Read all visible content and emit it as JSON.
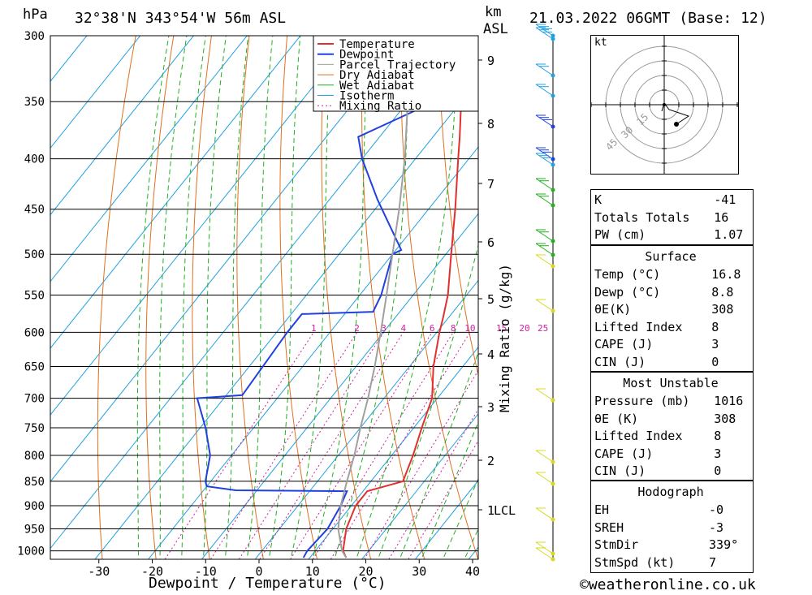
{
  "header": {
    "location": "32°38'N  343°54'W  56m  ASL",
    "datetime": "21.03.2022  06GMT  (Base: 12)",
    "p_unit": "hPa",
    "km_unit": "km",
    "asl": "ASL"
  },
  "chart_data": {
    "type": "line",
    "title": "32°38'N  343°54'W  56m  ASL",
    "xlabel": "Dewpoint / Temperature (°C)",
    "ylabel": "hPa",
    "mixing_ratio_label": "Mixing Ratio (g/kg)",
    "xlim": [
      -40,
      40
    ],
    "x_ticks": [
      -30,
      -20,
      -10,
      0,
      10,
      20,
      30,
      40
    ],
    "y_ticks": [
      300,
      350,
      400,
      450,
      500,
      550,
      600,
      650,
      700,
      750,
      800,
      850,
      900,
      950,
      1000
    ],
    "km_ticks": [
      "9",
      "8",
      "7",
      "6",
      "5",
      "4",
      "3",
      "2",
      "1"
    ],
    "lcl_label": "LCL",
    "mixing_ratio_values": [
      "1",
      "2",
      "3",
      "4",
      "6",
      "8",
      "10",
      "15",
      "20",
      "25"
    ],
    "legend": [
      "Temperature",
      "Dewpoint",
      "Parcel Trajectory",
      "Dry Adiabat",
      "Wet Adiabat",
      "Isotherm",
      "Mixing Ratio"
    ],
    "colors": {
      "temperature": "#e03030",
      "dewpoint": "#2040e0",
      "parcel": "#a0a0a0",
      "dry_adiabat": "#e07020",
      "wet_adiabat": "#20b020",
      "isotherm": "#20a0e0",
      "mixing_ratio": "#d020a0"
    },
    "series": [
      {
        "name": "Temperature",
        "points": [
          [
            1016,
            16.8
          ],
          [
            1000,
            15.2
          ],
          [
            950,
            12.5
          ],
          [
            900,
            10.8
          ],
          [
            870,
            10.8
          ],
          [
            850,
            16.0
          ],
          [
            800,
            14.0
          ],
          [
            750,
            11.5
          ],
          [
            700,
            9.0
          ],
          [
            650,
            4.5
          ],
          [
            600,
            0.5
          ],
          [
            580,
            -1.0
          ],
          [
            550,
            -3.5
          ],
          [
            500,
            -9.0
          ],
          [
            450,
            -15.0
          ],
          [
            400,
            -22.0
          ],
          [
            380,
            -25.0
          ],
          [
            350,
            -30.0
          ],
          [
            300,
            -39.0
          ]
        ]
      },
      {
        "name": "Dewpoint",
        "points": [
          [
            1016,
            8.8
          ],
          [
            1000,
            8.5
          ],
          [
            950,
            9.0
          ],
          [
            900,
            8.0
          ],
          [
            870,
            7.0
          ],
          [
            868,
            -14.0
          ],
          [
            860,
            -20.0
          ],
          [
            850,
            -21.0
          ],
          [
            800,
            -24.0
          ],
          [
            750,
            -29.0
          ],
          [
            700,
            -35.0
          ],
          [
            695,
            -27.0
          ],
          [
            600,
            -28.0
          ],
          [
            575,
            -28.0
          ],
          [
            572,
            -15.0
          ],
          [
            550,
            -16.0
          ],
          [
            500,
            -20.0
          ],
          [
            495,
            -19.0
          ],
          [
            440,
            -31.0
          ],
          [
            400,
            -40.0
          ],
          [
            380,
            -44.0
          ],
          [
            350,
            -35.0
          ],
          [
            330,
            -45.0
          ],
          [
            320,
            -47.0
          ],
          [
            300,
            -52.0
          ]
        ]
      },
      {
        "name": "Parcel Trajectory",
        "points": [
          [
            1016,
            16.8
          ],
          [
            1000,
            15.0
          ],
          [
            950,
            11.0
          ],
          [
            900,
            8.0
          ],
          [
            850,
            5.5
          ],
          [
            800,
            3.0
          ],
          [
            750,
            0.0
          ],
          [
            700,
            -3.0
          ],
          [
            650,
            -6.5
          ],
          [
            600,
            -10.5
          ],
          [
            550,
            -15.0
          ],
          [
            500,
            -20.0
          ],
          [
            450,
            -25.5
          ],
          [
            400,
            -32.0
          ],
          [
            350,
            -40.0
          ],
          [
            300,
            -49.0
          ]
        ]
      }
    ]
  },
  "hodograph": {
    "unit": "kt",
    "rings": [
      "15",
      "30",
      "45"
    ]
  },
  "indices": [
    {
      "label": "K",
      "value": "-41"
    },
    {
      "label": "Totals Totals",
      "value": "16"
    },
    {
      "label": "PW (cm)",
      "value": "1.07"
    }
  ],
  "surface": {
    "title": "Surface",
    "rows": [
      {
        "label": "Temp (°C)",
        "value": "16.8"
      },
      {
        "label": "Dewp (°C)",
        "value": "8.8"
      },
      {
        "label": "θE(K)",
        "value": "308"
      },
      {
        "label": "Lifted Index",
        "value": "8"
      },
      {
        "label": "CAPE (J)",
        "value": "3"
      },
      {
        "label": "CIN (J)",
        "value": "0"
      }
    ]
  },
  "most_unstable": {
    "title": "Most Unstable",
    "rows": [
      {
        "label": "Pressure (mb)",
        "value": "1016"
      },
      {
        "label": "θE (K)",
        "value": "308"
      },
      {
        "label": "Lifted Index",
        "value": "8"
      },
      {
        "label": "CAPE (J)",
        "value": "3"
      },
      {
        "label": "CIN (J)",
        "value": "0"
      }
    ]
  },
  "hodo_table": {
    "title": "Hodograph",
    "rows": [
      {
        "label": "EH",
        "value": "-0"
      },
      {
        "label": "SREH",
        "value": "-3"
      },
      {
        "label": "StmDir",
        "value": "339°"
      },
      {
        "label": "StmSpd (kt)",
        "value": "7"
      }
    ]
  },
  "footer": "©weatheronline.co.uk"
}
